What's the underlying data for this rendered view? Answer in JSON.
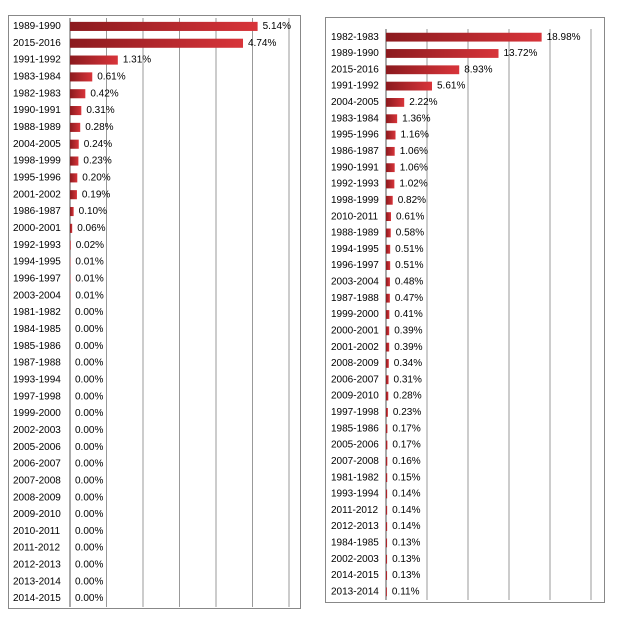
{
  "chart_data": [
    {
      "type": "bar",
      "orientation": "horizontal",
      "color": "#c0282d",
      "grid": true,
      "categories": [
        "1989-1990",
        "2015-2016",
        "1991-1992",
        "1983-1984",
        "1982-1983",
        "1990-1991",
        "1988-1989",
        "2004-2005",
        "1998-1999",
        "1995-1996",
        "2001-2002",
        "1986-1987",
        "2000-2001",
        "1992-1993",
        "1994-1995",
        "1996-1997",
        "2003-2004",
        "1981-1982",
        "1984-1985",
        "1985-1986",
        "1987-1988",
        "1993-1994",
        "1997-1998",
        "1999-2000",
        "2002-2003",
        "2005-2006",
        "2006-2007",
        "2007-2008",
        "2008-2009",
        "2009-2010",
        "2010-2011",
        "2011-2012",
        "2012-2013",
        "2013-2014",
        "2014-2015"
      ],
      "values": [
        5.14,
        4.74,
        1.31,
        0.61,
        0.42,
        0.31,
        0.28,
        0.24,
        0.23,
        0.2,
        0.19,
        0.1,
        0.06,
        0.02,
        0.01,
        0.01,
        0.01,
        0,
        0,
        0,
        0,
        0,
        0,
        0,
        0,
        0,
        0,
        0,
        0,
        0,
        0,
        0,
        0,
        0,
        0
      ],
      "value_labels": [
        "5.14%",
        "4.74%",
        "1.31%",
        "0.61%",
        "0.42%",
        "0.31%",
        "0.28%",
        "0.24%",
        "0.23%",
        "0.20%",
        "0.19%",
        "0.10%",
        "0.06%",
        "0.02%",
        "0.01%",
        "0.01%",
        "0.01%",
        "0.00%",
        "0.00%",
        "0.00%",
        "0.00%",
        "0.00%",
        "0.00%",
        "0.00%",
        "0.00%",
        "0.00%",
        "0.00%",
        "0.00%",
        "0.00%",
        "0.00%",
        "0.00%",
        "0.00%",
        "0.00%",
        "0.00%",
        "0.00%"
      ],
      "xlim": [
        0,
        6
      ],
      "xticks": [
        0,
        1,
        2,
        3,
        4,
        5,
        6
      ]
    },
    {
      "type": "bar",
      "orientation": "horizontal",
      "color": "#c0282d",
      "grid": true,
      "categories": [
        "1982-1983",
        "1989-1990",
        "2015-2016",
        "1991-1992",
        "2004-2005",
        "1983-1984",
        "1995-1996",
        "1986-1987",
        "1990-1991",
        "1992-1993",
        "1998-1999",
        "2010-2011",
        "1988-1989",
        "1994-1995",
        "1996-1997",
        "2003-2004",
        "1987-1988",
        "1999-2000",
        "2000-2001",
        "2001-2002",
        "2008-2009",
        "2006-2007",
        "2009-2010",
        "1997-1998",
        "1985-1986",
        "2005-2006",
        "2007-2008",
        "1981-1982",
        "1993-1994",
        "2011-2012",
        "2012-2013",
        "1984-1985",
        "2002-2003",
        "2014-2015",
        "2013-2014"
      ],
      "values": [
        18.98,
        13.72,
        8.93,
        5.61,
        2.22,
        1.36,
        1.16,
        1.06,
        1.06,
        1.02,
        0.82,
        0.61,
        0.58,
        0.51,
        0.51,
        0.48,
        0.47,
        0.41,
        0.39,
        0.39,
        0.34,
        0.31,
        0.28,
        0.23,
        0.17,
        0.17,
        0.16,
        0.15,
        0.14,
        0.14,
        0.14,
        0.13,
        0.13,
        0.13,
        0.11
      ],
      "value_labels": [
        "18.98%",
        "13.72%",
        "8.93%",
        "5.61%",
        "2.22%",
        "1.36%",
        "1.16%",
        "1.06%",
        "1.06%",
        "1.02%",
        "0.82%",
        "0.61%",
        "0.58%",
        "0.51%",
        "0.51%",
        "0.48%",
        "0.47%",
        "0.41%",
        "0.39%",
        "0.39%",
        "0.34%",
        "0.31%",
        "0.28%",
        "0.23%",
        "0.17%",
        "0.17%",
        "0.16%",
        "0.15%",
        "0.14%",
        "0.14%",
        "0.14%",
        "0.13%",
        "0.13%",
        "0.13%",
        "0.11%"
      ],
      "xlim": [
        0,
        25
      ],
      "xticks": [
        0,
        5,
        10,
        15,
        20,
        25
      ]
    }
  ]
}
